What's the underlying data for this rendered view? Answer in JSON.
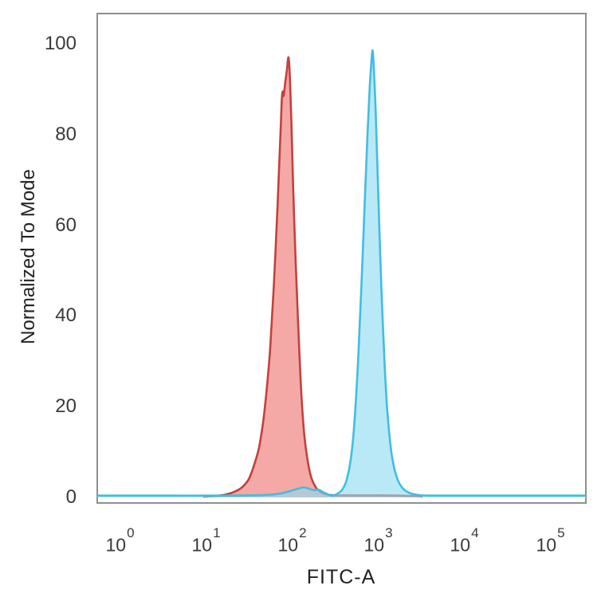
{
  "figure": {
    "type": "flow-cytometry-histogram",
    "background": "#ffffff",
    "frame_color": "#8f8f8f",
    "text_color": "#3a3a3a",
    "y_axis_title": "Normalized To Mode",
    "x_axis_title": "FITC-A",
    "x_tick_base": "10"
  },
  "chart_data": {
    "type": "area",
    "title": "",
    "xlabel": "FITC-A",
    "ylabel": "Normalized To Mode",
    "x_scale": "log10",
    "xlim_log10": [
      -0.26,
      5.42
    ],
    "ylim": [
      0,
      107
    ],
    "y_ticks": [
      0,
      20,
      40,
      60,
      80,
      100
    ],
    "x_tick_exponents": [
      0,
      1,
      2,
      3,
      4,
      5
    ],
    "grid": false,
    "legend": "none",
    "series": [
      {
        "name": "red-population",
        "description": "left histogram peak",
        "mode_fitc_approx": 92,
        "peak_height_pct": 97,
        "stroke": "#c4403d",
        "fill": "#ee6f6b",
        "fill_opacity": 0.6,
        "stroke_width": 2.6,
        "points_log10x_value": [
          [
            0.97,
            0.15
          ],
          [
            1.1,
            0.3
          ],
          [
            1.22,
            0.6
          ],
          [
            1.33,
            1.2
          ],
          [
            1.42,
            2.2
          ],
          [
            1.5,
            4
          ],
          [
            1.56,
            7
          ],
          [
            1.62,
            11
          ],
          [
            1.67,
            17
          ],
          [
            1.71,
            24
          ],
          [
            1.75,
            33
          ],
          [
            1.79,
            46
          ],
          [
            1.83,
            62
          ],
          [
            1.86,
            76
          ],
          [
            1.875,
            83
          ],
          [
            1.885,
            88
          ],
          [
            1.895,
            89.5
          ],
          [
            1.905,
            88.5
          ],
          [
            1.925,
            91.5
          ],
          [
            1.945,
            94.5
          ],
          [
            1.963,
            97
          ],
          [
            1.98,
            92
          ],
          [
            2.0,
            80
          ],
          [
            2.02,
            66
          ],
          [
            2.045,
            52
          ],
          [
            2.07,
            40
          ],
          [
            2.095,
            29
          ],
          [
            2.12,
            20
          ],
          [
            2.15,
            13
          ],
          [
            2.19,
            7.5
          ],
          [
            2.23,
            4.2
          ],
          [
            2.28,
            2.2
          ],
          [
            2.34,
            1.1
          ],
          [
            2.42,
            0.6
          ],
          [
            2.55,
            0.45
          ],
          [
            2.75,
            0.45
          ],
          [
            3.0,
            0.45
          ],
          [
            3.25,
            0.4
          ],
          [
            3.45,
            0.3
          ],
          [
            3.52,
            0.15
          ]
        ]
      },
      {
        "name": "cyan-population",
        "description": "right histogram peak with small secondary bump near 10^2.15",
        "mode_fitc_approx": 830,
        "peak_height_pct": 98.5,
        "stroke": "#41bde0",
        "fill": "#8edbf2",
        "fill_opacity": 0.62,
        "stroke_width": 2.6,
        "points_log10x_value": [
          [
            -0.26,
            0.4
          ],
          [
            0.5,
            0.4
          ],
          [
            1.0,
            0.4
          ],
          [
            1.5,
            0.45
          ],
          [
            1.75,
            0.6
          ],
          [
            1.88,
            0.9
          ],
          [
            1.98,
            1.4
          ],
          [
            2.07,
            1.9
          ],
          [
            2.14,
            2.2
          ],
          [
            2.2,
            1.9
          ],
          [
            2.26,
            1.6
          ],
          [
            2.31,
            1.7
          ],
          [
            2.37,
            1.1
          ],
          [
            2.43,
            0.6
          ],
          [
            2.47,
            0.4
          ],
          [
            2.53,
            0.8
          ],
          [
            2.59,
            1.8
          ],
          [
            2.64,
            4
          ],
          [
            2.69,
            9
          ],
          [
            2.73,
            17
          ],
          [
            2.77,
            30
          ],
          [
            2.81,
            47
          ],
          [
            2.85,
            66
          ],
          [
            2.88,
            80
          ],
          [
            2.905,
            90
          ],
          [
            2.925,
            96
          ],
          [
            2.94,
            98.5
          ],
          [
            2.955,
            94
          ],
          [
            2.975,
            85
          ],
          [
            3.0,
            70
          ],
          [
            3.025,
            55
          ],
          [
            3.05,
            42
          ],
          [
            3.08,
            29
          ],
          [
            3.11,
            19
          ],
          [
            3.15,
            11
          ],
          [
            3.19,
            6.5
          ],
          [
            3.24,
            3.5
          ],
          [
            3.3,
            1.8
          ],
          [
            3.38,
            0.9
          ],
          [
            3.48,
            0.5
          ],
          [
            3.6,
            0.4
          ],
          [
            4.0,
            0.4
          ],
          [
            4.5,
            0.4
          ],
          [
            5.0,
            0.4
          ],
          [
            5.42,
            0.4
          ]
        ]
      }
    ]
  }
}
